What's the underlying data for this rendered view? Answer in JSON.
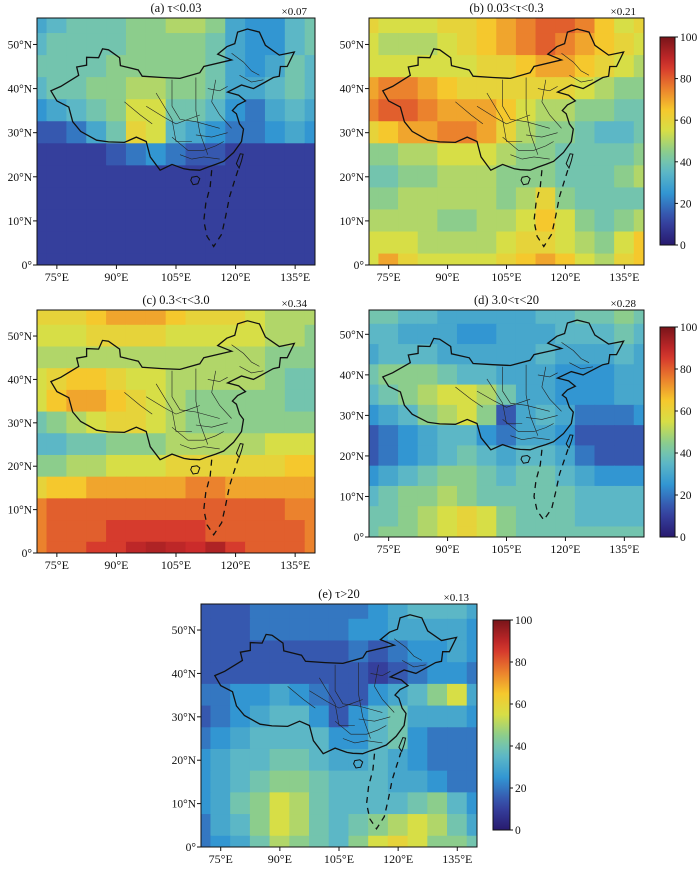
{
  "figure": {
    "panels": [
      {
        "id": "a",
        "title": "(a) τ<0.03",
        "scale": "×0.07"
      },
      {
        "id": "b",
        "title": "(b) 0.03<τ<0.3",
        "scale": "×0.21"
      },
      {
        "id": "c",
        "title": "(c) 0.3<τ<3.0",
        "scale": "×0.34"
      },
      {
        "id": "d",
        "title": "(d) 3.0<τ<20",
        "scale": "×0.28"
      },
      {
        "id": "e",
        "title": "(e) τ>20",
        "scale": "×0.13"
      }
    ],
    "x_ticks": [
      "75°E",
      "90°E",
      "105°E",
      "120°E",
      "135°E"
    ],
    "y_ticks": [
      "0°",
      "10°N",
      "20°N",
      "30°N",
      "40°N",
      "50°N"
    ],
    "colorbar_ticks": [
      "0",
      "20",
      "40",
      "60",
      "80",
      "100"
    ]
  },
  "chart_data": [
    {
      "type": "heatmap",
      "title": "(a) τ<0.03",
      "annotation": "×0.07",
      "x_values": [
        70,
        75,
        80,
        85,
        90,
        95,
        100,
        105,
        110,
        115,
        120,
        125,
        130,
        135,
        140
      ],
      "y_values": [
        55,
        50,
        45,
        40,
        35,
        30,
        25,
        20,
        15,
        10,
        5,
        0
      ],
      "xlim": [
        70,
        140
      ],
      "ylim": [
        0,
        56
      ],
      "zlim": [
        0,
        100
      ],
      "values": [
        [
          30,
          35,
          40,
          40,
          40,
          45,
          45,
          50,
          50,
          45,
          30,
          25,
          25,
          35,
          40
        ],
        [
          35,
          40,
          40,
          40,
          40,
          45,
          45,
          45,
          45,
          40,
          30,
          25,
          25,
          35,
          40
        ],
        [
          40,
          40,
          40,
          40,
          45,
          45,
          45,
          45,
          45,
          40,
          30,
          25,
          30,
          40,
          35
        ],
        [
          35,
          40,
          40,
          45,
          45,
          50,
          50,
          45,
          45,
          40,
          30,
          30,
          35,
          40,
          35
        ],
        [
          25,
          30,
          35,
          40,
          45,
          55,
          55,
          40,
          40,
          35,
          25,
          20,
          30,
          35,
          30
        ],
        [
          15,
          15,
          20,
          30,
          40,
          60,
          55,
          35,
          30,
          25,
          20,
          20,
          25,
          30,
          25
        ],
        [
          10,
          10,
          10,
          10,
          15,
          20,
          25,
          20,
          15,
          15,
          10,
          10,
          10,
          10,
          10
        ],
        [
          10,
          10,
          10,
          10,
          10,
          10,
          10,
          10,
          10,
          10,
          10,
          10,
          10,
          10,
          10
        ],
        [
          10,
          10,
          10,
          10,
          10,
          10,
          10,
          10,
          10,
          10,
          10,
          10,
          10,
          10,
          10
        ],
        [
          10,
          10,
          10,
          10,
          10,
          10,
          10,
          10,
          10,
          10,
          10,
          10,
          10,
          10,
          10
        ],
        [
          10,
          10,
          10,
          10,
          10,
          10,
          10,
          10,
          10,
          10,
          10,
          10,
          10,
          10,
          10
        ],
        [
          10,
          10,
          10,
          10,
          10,
          10,
          10,
          10,
          10,
          10,
          10,
          10,
          10,
          10,
          10
        ]
      ]
    },
    {
      "type": "heatmap",
      "title": "(b) 0.03<τ<0.3",
      "annotation": "×0.21",
      "x_values": [
        70,
        75,
        80,
        85,
        90,
        95,
        100,
        105,
        110,
        115,
        120,
        125,
        130,
        135,
        140
      ],
      "y_values": [
        55,
        50,
        45,
        40,
        35,
        30,
        25,
        20,
        15,
        10,
        5,
        0
      ],
      "xlim": [
        70,
        140
      ],
      "ylim": [
        0,
        56
      ],
      "zlim": [
        0,
        100
      ],
      "values": [
        [
          60,
          55,
          55,
          55,
          60,
          60,
          65,
          70,
          75,
          80,
          80,
          75,
          65,
          55,
          60
        ],
        [
          55,
          50,
          50,
          50,
          55,
          60,
          65,
          70,
          75,
          80,
          75,
          70,
          65,
          60,
          55
        ],
        [
          55,
          55,
          55,
          55,
          55,
          55,
          60,
          60,
          65,
          70,
          70,
          65,
          60,
          55,
          50
        ],
        [
          70,
          75,
          75,
          70,
          65,
          60,
          60,
          60,
          60,
          60,
          60,
          55,
          50,
          45,
          45
        ],
        [
          75,
          80,
          80,
          75,
          70,
          70,
          70,
          65,
          55,
          50,
          50,
          45,
          45,
          40,
          40
        ],
        [
          60,
          65,
          70,
          70,
          75,
          75,
          70,
          60,
          50,
          45,
          45,
          40,
          35,
          35,
          40
        ],
        [
          45,
          45,
          50,
          50,
          55,
          55,
          55,
          50,
          45,
          45,
          40,
          40,
          40,
          40,
          45
        ],
        [
          40,
          40,
          45,
          45,
          50,
          50,
          50,
          45,
          45,
          45,
          40,
          40,
          40,
          45,
          50
        ],
        [
          45,
          45,
          50,
          50,
          50,
          50,
          50,
          45,
          50,
          60,
          45,
          40,
          40,
          40,
          40
        ],
        [
          50,
          50,
          50,
          50,
          45,
          45,
          50,
          50,
          55,
          65,
          55,
          45,
          40,
          45,
          50
        ],
        [
          55,
          55,
          55,
          50,
          50,
          50,
          50,
          55,
          60,
          60,
          55,
          50,
          45,
          55,
          65
        ],
        [
          55,
          70,
          60,
          55,
          55,
          55,
          55,
          60,
          65,
          70,
          65,
          55,
          50,
          60,
          65
        ]
      ]
    },
    {
      "type": "heatmap",
      "title": "(c) 0.3<τ<3.0",
      "annotation": "×0.34",
      "x_values": [
        70,
        75,
        80,
        85,
        90,
        95,
        100,
        105,
        110,
        115,
        120,
        125,
        130,
        135,
        140
      ],
      "y_values": [
        55,
        50,
        45,
        40,
        35,
        30,
        25,
        20,
        15,
        10,
        5,
        0
      ],
      "xlim": [
        70,
        140
      ],
      "ylim": [
        0,
        56
      ],
      "zlim": [
        0,
        100
      ],
      "values": [
        [
          60,
          60,
          60,
          65,
          70,
          70,
          70,
          65,
          60,
          60,
          60,
          55,
          50,
          50,
          50
        ],
        [
          55,
          55,
          55,
          60,
          60,
          60,
          60,
          55,
          55,
          55,
          55,
          55,
          50,
          50,
          45
        ],
        [
          50,
          50,
          50,
          50,
          50,
          50,
          50,
          50,
          50,
          50,
          50,
          50,
          45,
          45,
          45
        ],
        [
          55,
          60,
          65,
          65,
          60,
          55,
          55,
          50,
          50,
          50,
          50,
          50,
          45,
          40,
          40
        ],
        [
          55,
          65,
          70,
          70,
          65,
          60,
          55,
          50,
          45,
          45,
          45,
          45,
          45,
          40,
          40
        ],
        [
          40,
          45,
          50,
          55,
          60,
          60,
          55,
          50,
          45,
          45,
          45,
          45,
          45,
          45,
          45
        ],
        [
          35,
          35,
          40,
          40,
          45,
          45,
          45,
          50,
          50,
          50,
          50,
          50,
          55,
          55,
          55
        ],
        [
          45,
          45,
          50,
          50,
          55,
          55,
          55,
          60,
          60,
          60,
          60,
          60,
          60,
          65,
          65
        ],
        [
          60,
          65,
          65,
          70,
          70,
          70,
          70,
          70,
          75,
          75,
          70,
          70,
          70,
          70,
          70
        ],
        [
          75,
          80,
          80,
          80,
          80,
          80,
          80,
          80,
          80,
          80,
          80,
          80,
          80,
          75,
          75
        ],
        [
          75,
          80,
          80,
          80,
          85,
          85,
          85,
          85,
          85,
          80,
          80,
          80,
          80,
          80,
          75
        ],
        [
          75,
          80,
          80,
          85,
          85,
          90,
          92,
          90,
          88,
          92,
          85,
          80,
          80,
          80,
          75
        ]
      ]
    },
    {
      "type": "heatmap",
      "title": "(d) 3.0<τ<20",
      "annotation": "×0.28",
      "x_values": [
        70,
        75,
        80,
        85,
        90,
        95,
        100,
        105,
        110,
        115,
        120,
        125,
        130,
        135,
        140
      ],
      "y_values": [
        55,
        50,
        45,
        40,
        35,
        30,
        25,
        20,
        15,
        10,
        5,
        0
      ],
      "xlim": [
        70,
        140
      ],
      "ylim": [
        0,
        56
      ],
      "zlim": [
        0,
        100
      ],
      "values": [
        [
          40,
          40,
          35,
          35,
          30,
          30,
          30,
          30,
          30,
          35,
          35,
          40,
          40,
          45,
          40
        ],
        [
          35,
          35,
          30,
          30,
          30,
          25,
          25,
          30,
          30,
          30,
          35,
          35,
          35,
          40,
          35
        ],
        [
          30,
          35,
          35,
          35,
          30,
          30,
          30,
          30,
          30,
          35,
          30,
          30,
          30,
          35,
          30
        ],
        [
          40,
          45,
          45,
          45,
          40,
          35,
          35,
          30,
          30,
          30,
          25,
          25,
          25,
          30,
          30
        ],
        [
          35,
          40,
          45,
          50,
          55,
          55,
          50,
          40,
          30,
          30,
          25,
          25,
          25,
          30,
          30
        ],
        [
          25,
          30,
          35,
          45,
          50,
          55,
          45,
          15,
          30,
          35,
          30,
          20,
          20,
          20,
          25
        ],
        [
          15,
          20,
          25,
          30,
          35,
          35,
          25,
          20,
          30,
          30,
          25,
          15,
          15,
          15,
          15
        ],
        [
          15,
          20,
          25,
          30,
          35,
          40,
          35,
          30,
          35,
          35,
          30,
          20,
          15,
          15,
          15
        ],
        [
          25,
          30,
          35,
          40,
          45,
          45,
          40,
          35,
          40,
          40,
          35,
          30,
          25,
          25,
          25
        ],
        [
          35,
          40,
          45,
          45,
          50,
          45,
          40,
          40,
          40,
          40,
          40,
          35,
          35,
          35,
          35
        ],
        [
          40,
          40,
          45,
          50,
          55,
          60,
          55,
          45,
          40,
          40,
          40,
          35,
          35,
          35,
          35
        ],
        [
          40,
          45,
          45,
          50,
          55,
          60,
          55,
          45,
          40,
          40,
          40,
          40,
          40,
          40,
          40
        ]
      ]
    },
    {
      "type": "heatmap",
      "title": "(e) τ>20",
      "annotation": "×0.13",
      "x_values": [
        70,
        75,
        80,
        85,
        90,
        95,
        100,
        105,
        110,
        115,
        120,
        125,
        130,
        135,
        140
      ],
      "y_values": [
        55,
        50,
        45,
        40,
        35,
        30,
        25,
        20,
        15,
        10,
        5,
        0
      ],
      "xlim": [
        70,
        140
      ],
      "ylim": [
        0,
        56
      ],
      "zlim": [
        0,
        100
      ],
      "values": [
        [
          15,
          15,
          15,
          20,
          20,
          20,
          20,
          20,
          20,
          25,
          30,
          35,
          35,
          35,
          30
        ],
        [
          15,
          15,
          15,
          20,
          20,
          20,
          20,
          20,
          25,
          25,
          30,
          30,
          30,
          30,
          25
        ],
        [
          15,
          15,
          15,
          15,
          15,
          15,
          15,
          15,
          20,
          15,
          20,
          25,
          25,
          30,
          25
        ],
        [
          15,
          15,
          15,
          15,
          15,
          15,
          15,
          15,
          15,
          10,
          15,
          20,
          25,
          25,
          20
        ],
        [
          20,
          20,
          25,
          25,
          30,
          25,
          20,
          15,
          15,
          25,
          30,
          35,
          45,
          55,
          30
        ],
        [
          15,
          20,
          25,
          30,
          35,
          35,
          25,
          15,
          25,
          35,
          40,
          30,
          30,
          30,
          25
        ],
        [
          20,
          25,
          30,
          35,
          35,
          35,
          35,
          25,
          25,
          35,
          40,
          25,
          20,
          20,
          20
        ],
        [
          25,
          30,
          35,
          35,
          40,
          40,
          35,
          30,
          30,
          35,
          30,
          25,
          20,
          20,
          20
        ],
        [
          25,
          30,
          35,
          40,
          45,
          45,
          40,
          35,
          35,
          35,
          30,
          30,
          25,
          20,
          20
        ],
        [
          25,
          30,
          40,
          45,
          55,
          50,
          40,
          35,
          35,
          35,
          35,
          40,
          45,
          35,
          25
        ],
        [
          20,
          30,
          35,
          45,
          55,
          50,
          40,
          35,
          40,
          45,
          50,
          55,
          50,
          40,
          30
        ],
        [
          20,
          25,
          30,
          40,
          50,
          45,
          40,
          35,
          45,
          55,
          60,
          55,
          45,
          45,
          40
        ]
      ]
    }
  ]
}
